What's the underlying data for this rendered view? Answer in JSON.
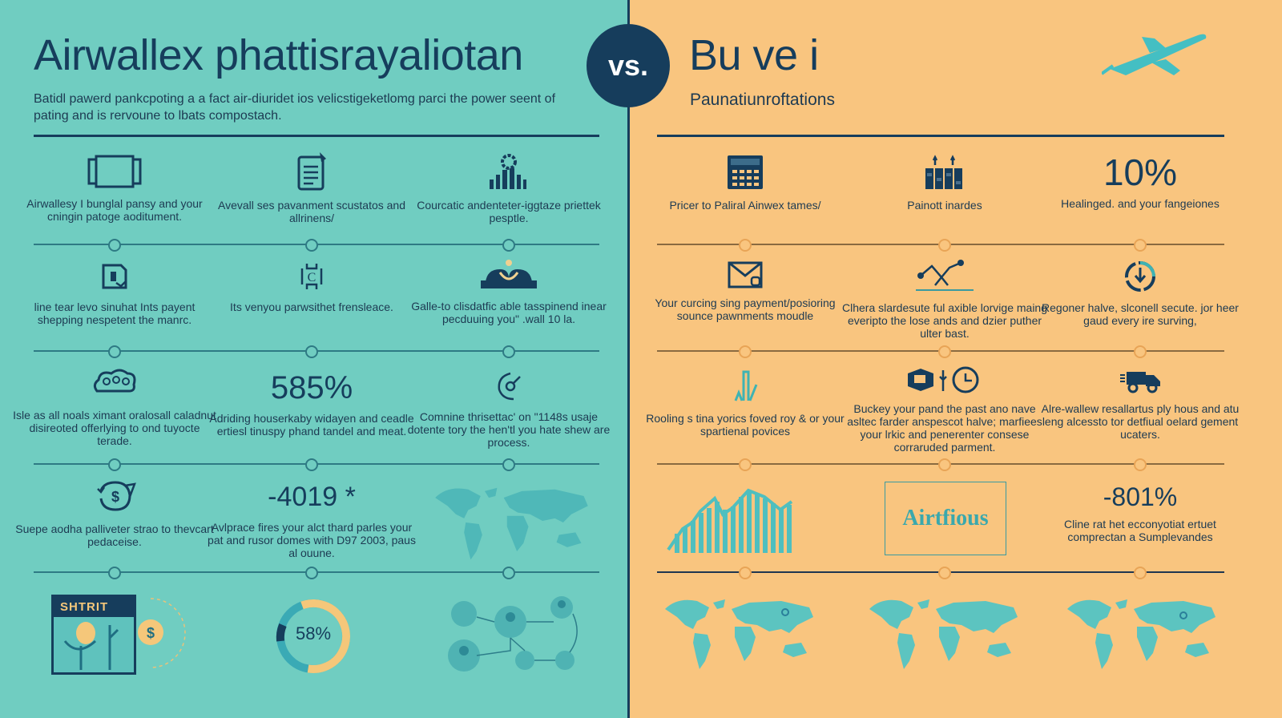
{
  "left": {
    "title": "Airwallex phattisrayaliotan",
    "subtitle": "Batidl pawerd pankcpoting a a fact air-diuridet ios velicstigeketlomg parci the power seent of pating and is rervoune to lbats compostach.",
    "row1": [
      {
        "icon": "tablet-icon",
        "text": "Airwallesy I bunglal pansy and your cningin patoge aoditument."
      },
      {
        "icon": "document-icon",
        "text": "Avevall ses pavanment scustatos and allrinens/"
      },
      {
        "icon": "bar-chart-gear-icon",
        "text": "Courcatic andenteter-iggtaze priettek pesptle."
      }
    ],
    "row2": [
      {
        "icon": "wallet-icon",
        "text": "line tear levo sinuhat Ints payent shepping nespetent the manrc."
      },
      {
        "icon": "currency-exchange-icon",
        "text": "Its venyou parwsithet frensleace."
      },
      {
        "icon": "dome-icon",
        "text": "Galle-to clisdatfic able tasspinend inear pecduuing you\" .wall 10 la."
      }
    ],
    "row3": [
      {
        "icon": "cloud-network-icon",
        "text": "Isle as all noals ximant oralosall caladnut disireoted offerlying to ond tuyocte terade."
      },
      {
        "stat": "585%",
        "text": "Adriding houserkaby widayen and ceadle ertiesl tinuspy phand tandel and meat."
      },
      {
        "icon": "refresh-icon",
        "text": "Comnine thrisettac' on \"1148s usaje dotente tory the hen'tl you hate shew are process."
      }
    ],
    "row4": [
      {
        "icon": "dollar-cycle-icon",
        "text": "Suepe aodha palliveter strao to thevcart pedaceise."
      },
      {
        "stat": "-4019 *",
        "text": "Avlprace fires your alct thard parles your pat and rusor domes with D97 2003, paus al ouune."
      },
      {
        "icon": "world-map-icon"
      }
    ],
    "row5": {
      "card_label": "SHTRIT",
      "donut_value": "58%",
      "donut_percent": 58,
      "network_icon": "people-network-icon"
    }
  },
  "vs_label": "vs.",
  "right": {
    "title": "Bu ve i",
    "subtitle": "Paunatiunroftations",
    "row1": [
      {
        "icon": "calculator-icon",
        "text": "Pricer to Paliral Ainwex tames/"
      },
      {
        "icon": "buildings-icon",
        "text": "Painott inardes"
      },
      {
        "stat": "10%",
        "text": "Healinged. and your fangeiones"
      }
    ],
    "row2": [
      {
        "icon": "envelope-icon",
        "text": "Your curcing sing payment/posioring sounce pawnments moudle"
      },
      {
        "icon": "line-chart-icon",
        "text": "Clhera slardesute ful axible lorvige maing everipto the lose ands and dzier puther ulter bast."
      },
      {
        "icon": "clock-download-icon",
        "text": "Regoner halve, slconell secute. jor heer gaud every ire surving,"
      }
    ],
    "row3": [
      {
        "icon": "bars-icon",
        "text": "Rooling s tina yorics foved roy & or your spartienal povices"
      },
      {
        "icon": "box-clock-icon",
        "text": "Buckey your pand the past ano nave asltec farder anspescot halve; marfiees your lrkic and penerenter consese corraruded parment."
      },
      {
        "icon": "truck-icon",
        "text": "Alre-wallew resallartus ply hous and atu leng alcessto tor detfiual oelard gement ucaters."
      }
    ],
    "row4": [
      {
        "icon": "growth-chart-icon"
      },
      {
        "box_label": "Airtfious"
      },
      {
        "stat": "-801%",
        "text": "Cline rat het ecconyotiat ertuet comprectan a Sumplevandes"
      }
    ],
    "row5": [
      {
        "icon": "world-map-icon"
      },
      {
        "icon": "world-map-icon"
      },
      {
        "icon": "world-map-icon"
      }
    ]
  },
  "colors": {
    "left_bg": "#70cdc1",
    "right_bg": "#f9c57f",
    "navy": "#163d5c",
    "teal_accent": "#3bbcc0"
  }
}
